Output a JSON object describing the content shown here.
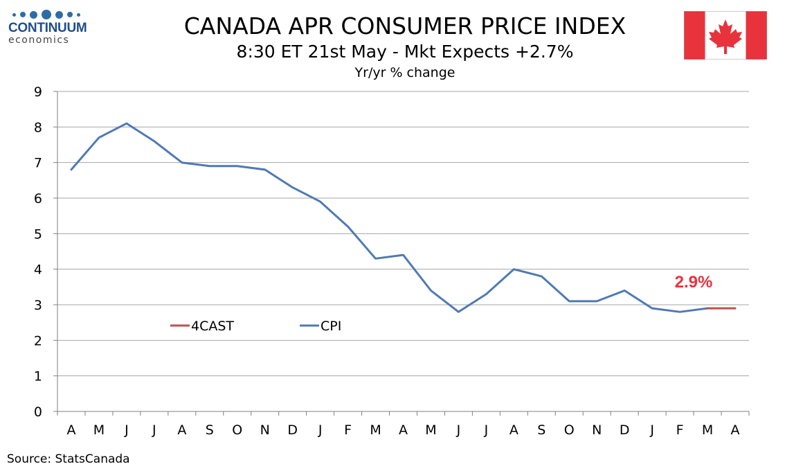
{
  "header": {
    "logo_name": "CONTINUUM",
    "logo_sub": "economics",
    "title": "CANADA APR CONSUMER PRICE INDEX",
    "subtitle": "8:30 ET 21st May - Mkt Expects +2.7%",
    "units": "Yr/yr % change"
  },
  "flag": {
    "icon": "canada-flag-icon",
    "red": "#e8323c",
    "white": "#ffffff"
  },
  "source": "Source: StatsCanada",
  "chart_data": {
    "type": "line",
    "title": "CANADA APR CONSUMER PRICE INDEX",
    "subtitle": "8:30 ET 21st May - Mkt Expects +2.7%",
    "ylabel": "Yr/yr % change",
    "xlabel": "",
    "ylim": [
      0,
      9
    ],
    "yticks": [
      0,
      1,
      2,
      3,
      4,
      5,
      6,
      7,
      8,
      9
    ],
    "grid": true,
    "categories": [
      "A",
      "M",
      "J",
      "J",
      "A",
      "S",
      "O",
      "N",
      "D",
      "J",
      "F",
      "M",
      "A",
      "M",
      "J",
      "J",
      "A",
      "S",
      "O",
      "N",
      "D",
      "J",
      "F",
      "M",
      "A"
    ],
    "series": [
      {
        "name": "4CAST",
        "color": "#c0504d",
        "values": [
          null,
          null,
          null,
          null,
          null,
          null,
          null,
          null,
          null,
          null,
          null,
          null,
          null,
          null,
          null,
          null,
          null,
          null,
          null,
          null,
          null,
          null,
          null,
          2.9,
          2.9
        ]
      },
      {
        "name": "CPI",
        "color": "#4f7ab3",
        "values": [
          6.8,
          7.7,
          8.1,
          7.6,
          7.0,
          6.9,
          6.9,
          6.8,
          6.3,
          5.9,
          5.2,
          4.3,
          4.4,
          3.4,
          2.8,
          3.3,
          4.0,
          3.8,
          3.1,
          3.1,
          3.4,
          2.9,
          2.8,
          2.9,
          null
        ]
      }
    ],
    "legend": [
      "4CAST",
      "CPI"
    ],
    "legend_position": "lower-left",
    "annotation": {
      "text": "2.9%",
      "color": "#e8323c",
      "series": "4CAST",
      "index": 24
    }
  }
}
